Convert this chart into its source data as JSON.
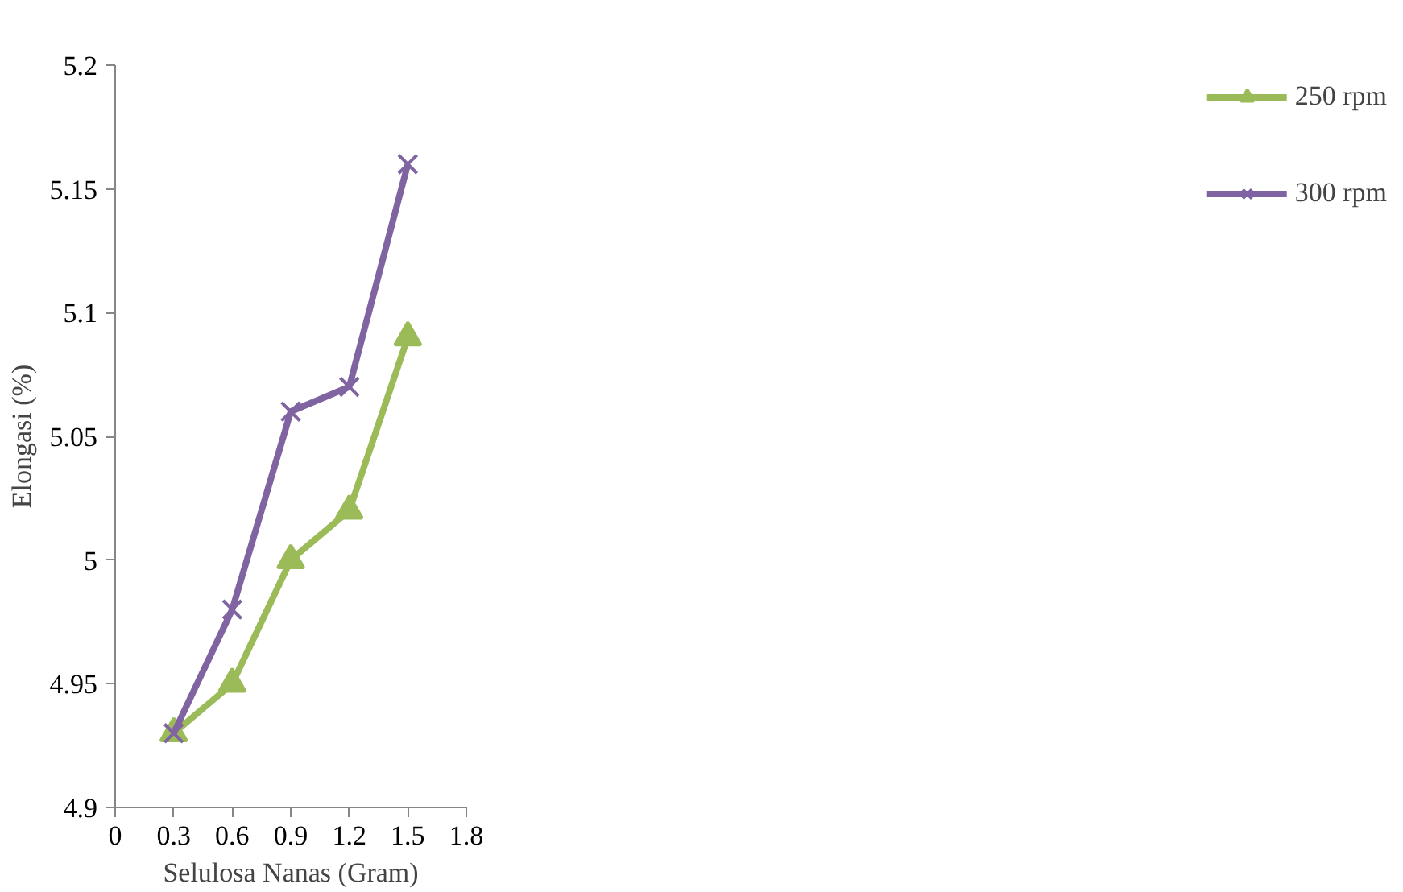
{
  "chart_data": {
    "type": "line",
    "xlabel": "Selulosa Nanas (Gram)",
    "ylabel": "Elongasi (%)",
    "x": [
      0.3,
      0.6,
      0.9,
      1.2,
      1.5
    ],
    "series": [
      {
        "name": "250 rpm",
        "color": "#9bbb59",
        "marker": "triangle",
        "values": [
          4.93,
          4.95,
          5.0,
          5.02,
          5.09
        ]
      },
      {
        "name": "300 rpm",
        "color": "#8064a2",
        "marker": "cross",
        "values": [
          4.93,
          4.98,
          5.06,
          5.07,
          5.16
        ]
      }
    ],
    "xlim": [
      0,
      1.8
    ],
    "xticks": [
      0,
      0.3,
      0.6,
      0.9,
      1.2,
      1.5,
      1.8
    ],
    "ylim": [
      4.9,
      5.2
    ],
    "yticks": [
      4.9,
      4.95,
      5,
      5.05,
      5.1,
      5.15,
      5.2
    ],
    "grid": false,
    "legend": "right",
    "line_style": "solid"
  }
}
